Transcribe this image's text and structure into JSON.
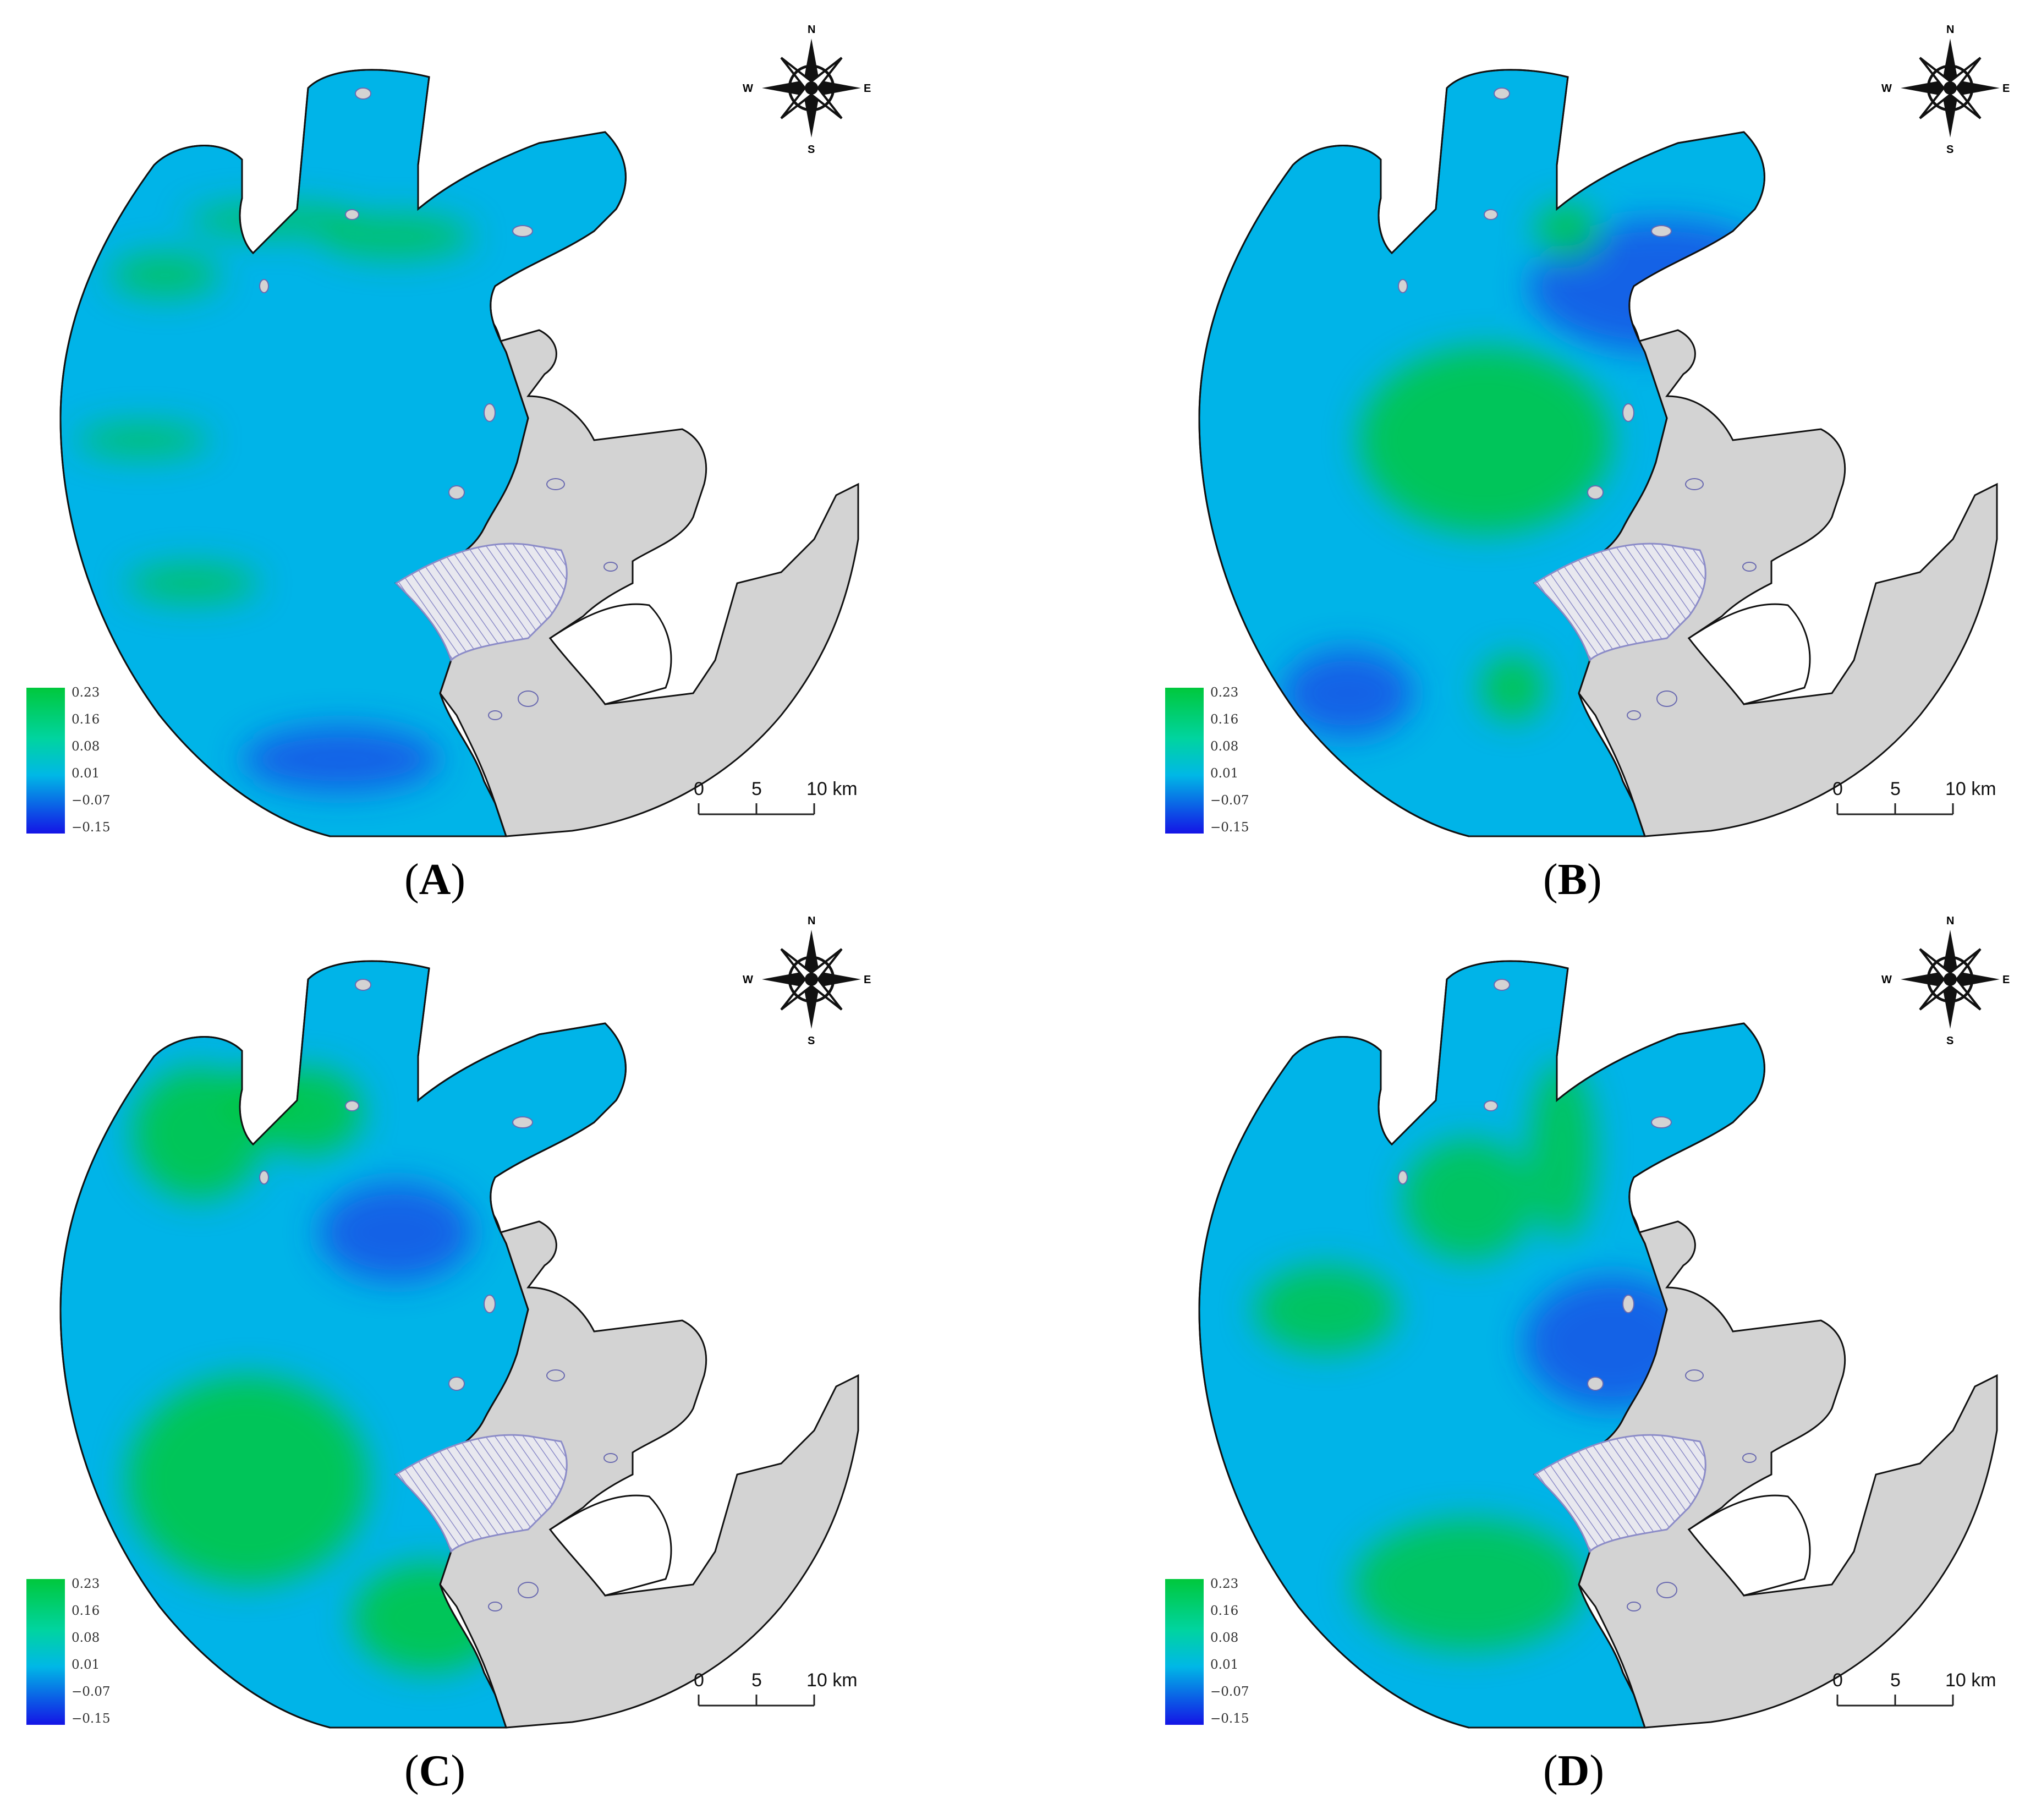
{
  "panels": [
    {
      "id": "A",
      "label_open": "(",
      "label_letter": "A",
      "label_close": ")"
    },
    {
      "id": "B",
      "label_open": "(",
      "label_letter": "B",
      "label_close": ")"
    },
    {
      "id": "C",
      "label_open": "(",
      "label_letter": "C",
      "label_close": ")"
    },
    {
      "id": "D",
      "label_open": "(",
      "label_letter": "D",
      "label_close": ")"
    }
  ],
  "legend": {
    "ticks": [
      "0.23",
      "0.16",
      "0.08",
      "0.01",
      "−0.07",
      "−0.15"
    ],
    "values": [
      0.23,
      0.16,
      0.08,
      0.01,
      -0.07,
      -0.15
    ],
    "color_high": "#00c83c",
    "color_mid": "#00b8e6",
    "color_low": "#1414e6"
  },
  "scale_bar": {
    "labels": [
      "0",
      "5",
      "10 km"
    ]
  },
  "compass": {
    "n": "N",
    "s": "S",
    "e": "E",
    "w": "W"
  },
  "colors": {
    "land": "#d3d3d3",
    "water_base": "#00b4e8",
    "green": "#00c83c",
    "deep_blue": "#1e46e6",
    "hatch": "#8c8cc8",
    "outline": "#111111"
  },
  "features": {
    "water": "lake-water-body",
    "land": "land-mass",
    "hatched": "hatched-area",
    "islands": "island-outlines"
  },
  "green_levels": {
    "A": 0.25,
    "B": 0.55,
    "C": 0.6,
    "D": 0.45
  }
}
